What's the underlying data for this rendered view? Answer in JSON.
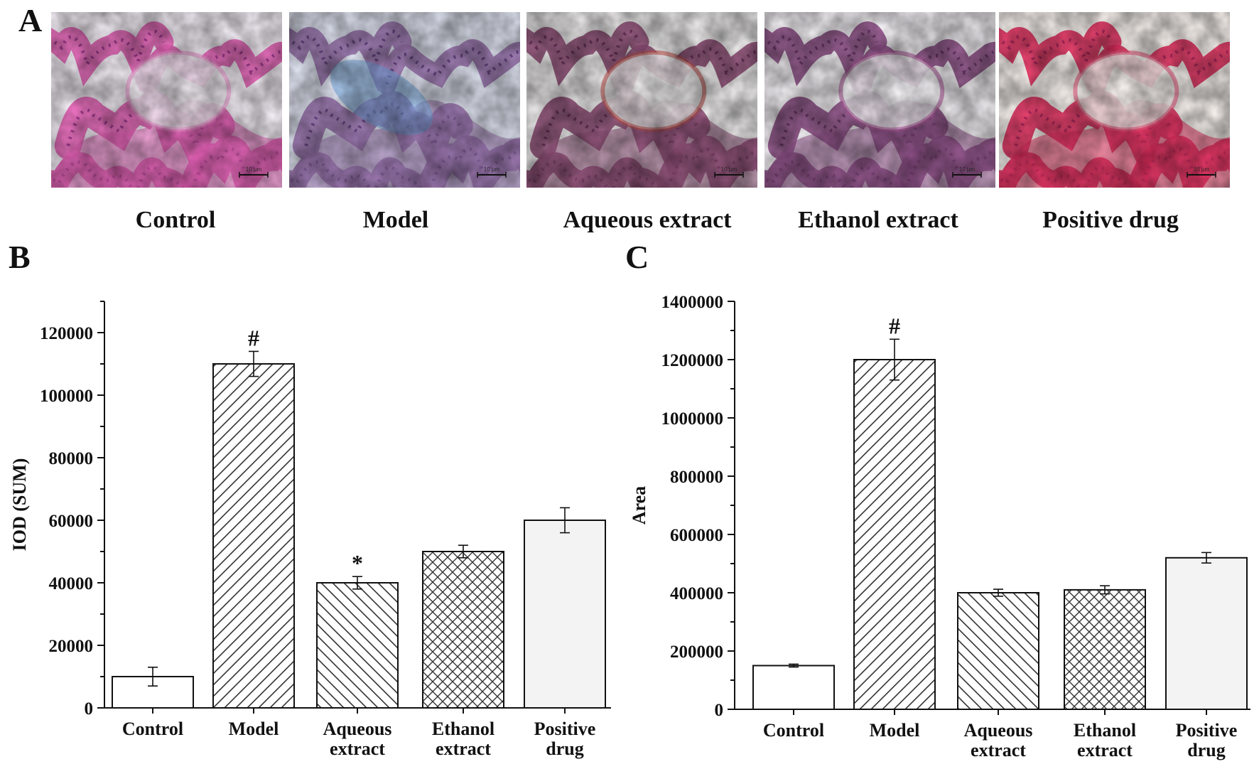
{
  "panel_a": {
    "letter": "A",
    "images": [
      {
        "label": "Control",
        "scale_bar": "10 μm",
        "colors": {
          "bg": "#f4eef6",
          "tissue": "#e25fb4",
          "dark": "#8e2f86",
          "accent": "#f29ad4"
        }
      },
      {
        "label": "Model",
        "scale_bar": "10 μm",
        "colors": {
          "bg": "#dde1ee",
          "tissue": "#9a74ae",
          "dark": "#5c3b7a",
          "accent": "#6da2d8"
        }
      },
      {
        "label": "Aqueous extract",
        "scale_bar": "10 μm",
        "colors": {
          "bg": "#eceaea",
          "tissue": "#8e4e76",
          "dark": "#5e2a52",
          "accent": "#c2534e"
        }
      },
      {
        "label": "Ethanol extract",
        "scale_bar": "10 μm",
        "colors": {
          "bg": "#f1eef2",
          "tissue": "#8d4f86",
          "dark": "#60305f",
          "accent": "#b05a9c"
        }
      },
      {
        "label": "Positive drug",
        "scale_bar": "10 μm",
        "colors": {
          "bg": "#f8f2ee",
          "tissue": "#e22f5e",
          "dark": "#a0205a",
          "accent": "#ee5a80"
        }
      }
    ]
  },
  "chart_data": [
    {
      "panel": "B",
      "type": "bar",
      "ylabel": "IOD (SUM)",
      "ylim": [
        0,
        130000
      ],
      "yticks": [
        0,
        20000,
        40000,
        60000,
        80000,
        100000,
        120000
      ],
      "ytick_labels": [
        "0",
        "20000",
        "40000",
        "60000",
        "80000",
        "100000",
        "120000"
      ],
      "categories": [
        [
          "Control"
        ],
        [
          "Model"
        ],
        [
          "Aqueous",
          "extract"
        ],
        [
          "Ethanol",
          "extract"
        ],
        [
          "Positive",
          "drug"
        ]
      ],
      "values": [
        10000,
        110000,
        40000,
        50000,
        60000
      ],
      "errors": [
        3000,
        4000,
        2000,
        2000,
        4000
      ],
      "patterns": [
        "none",
        "diag-forward",
        "diag-back",
        "crosshatch",
        "light-fill"
      ],
      "annotations": [
        "",
        "#",
        "*",
        "",
        ""
      ]
    },
    {
      "panel": "C",
      "type": "bar",
      "ylabel": "Area",
      "ylim": [
        0,
        1400000
      ],
      "yticks": [
        0,
        200000,
        400000,
        600000,
        800000,
        1000000,
        1200000,
        1400000
      ],
      "ytick_labels": [
        "0",
        "200000",
        "400000",
        "600000",
        "800000",
        "1000000",
        "1200000",
        "1400000"
      ],
      "categories": [
        [
          "Control"
        ],
        [
          "Model"
        ],
        [
          "Aqueous",
          "extract"
        ],
        [
          "Ethanol",
          "extract"
        ],
        [
          "Positive",
          "drug"
        ]
      ],
      "values": [
        150000,
        1200000,
        400000,
        410000,
        520000
      ],
      "errors": [
        5000,
        70000,
        12000,
        14000,
        18000
      ],
      "patterns": [
        "none",
        "diag-forward",
        "diag-back",
        "crosshatch",
        "light-fill"
      ],
      "annotations": [
        "",
        "#",
        "",
        "",
        ""
      ]
    }
  ]
}
